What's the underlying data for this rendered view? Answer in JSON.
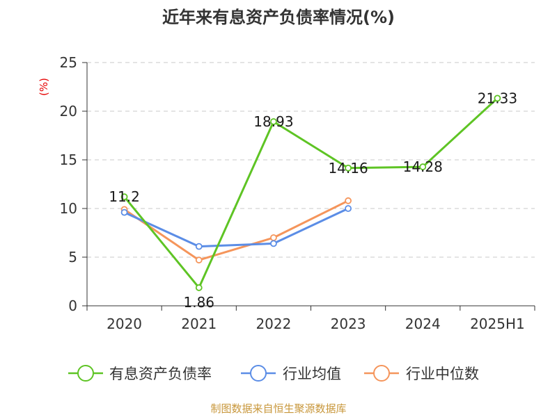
{
  "chart_data": {
    "type": "line",
    "title": "近年来有息资产负债率情况(%)",
    "ylabel": "(%)",
    "xlabel": "",
    "categories": [
      "2020",
      "2021",
      "2022",
      "2023",
      "2024",
      "2025H1"
    ],
    "ylim": [
      0,
      25
    ],
    "yticks": [
      0,
      5,
      10,
      15,
      20,
      25
    ],
    "grid": true,
    "legend_position": "bottom",
    "series": [
      {
        "name": "有息资产负债率",
        "color": "#5ec424",
        "values": [
          11.2,
          1.86,
          18.93,
          14.16,
          14.28,
          21.33
        ],
        "labels": [
          "11.2",
          "1.86",
          "18.93",
          "14.16",
          "14.28",
          "21.33"
        ]
      },
      {
        "name": "行业均值",
        "color": "#5b8de6",
        "values": [
          9.6,
          6.1,
          6.4,
          10.0,
          null,
          null
        ]
      },
      {
        "name": "行业中位数",
        "color": "#f5955b",
        "values": [
          9.9,
          4.7,
          7.0,
          10.8,
          null,
          null
        ]
      }
    ]
  },
  "source": "制图数据来自恒生聚源数据库"
}
